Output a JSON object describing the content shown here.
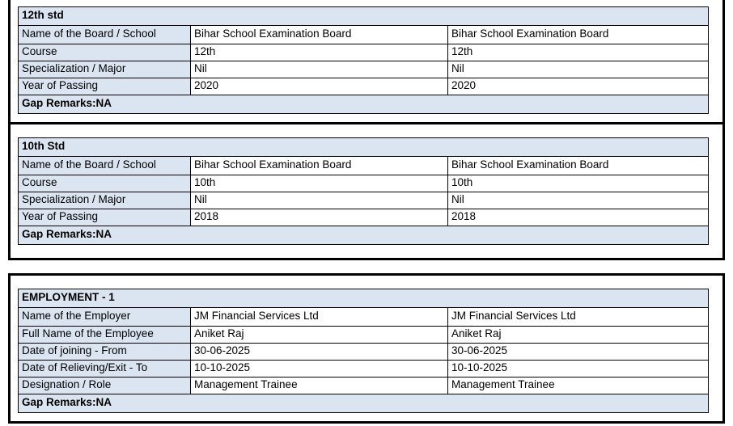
{
  "colors": {
    "section_fill": "#dbe5f1",
    "border": "#000000",
    "background": "#ffffff",
    "text": "#000000"
  },
  "sections": [
    {
      "title": "12th std",
      "rows": [
        {
          "label": "Name of the Board / School",
          "value1": "Bihar School Examination Board",
          "value2": "Bihar School Examination Board"
        },
        {
          "label": "Course",
          "value1": "12th",
          "value2": "12th"
        },
        {
          "label": "Specialization / Major",
          "value1": "Nil",
          "value2": "Nil"
        },
        {
          "label": "Year of Passing",
          "value1": "2020",
          "value2": "2020"
        }
      ],
      "gap_remarks": "Gap Remarks:NA"
    },
    {
      "title": "10th Std",
      "rows": [
        {
          "label": "Name of the Board / School",
          "value1": "Bihar School Examination Board",
          "value2": "Bihar School Examination Board"
        },
        {
          "label": "Course",
          "value1": "10th",
          "value2": "10th"
        },
        {
          "label": "Specialization / Major",
          "value1": "Nil",
          "value2": "Nil"
        },
        {
          "label": "Year of Passing",
          "value1": "2018",
          "value2": "2018"
        }
      ],
      "gap_remarks": "Gap Remarks:NA"
    },
    {
      "title": "EMPLOYMENT - 1",
      "rows": [
        {
          "label": "Name of the Employer",
          "value1": "JM Financial Services Ltd",
          "value2": "JM Financial Services Ltd"
        },
        {
          "label": "Full Name of the Employee",
          "value1": "Aniket Raj",
          "value2": "Aniket Raj"
        },
        {
          "label": "Date of joining - From",
          "value1": "30-06-2025",
          "value2": "30-06-2025"
        },
        {
          "label": "Date of Relieving/Exit - To",
          "value1": "10-10-2025",
          "value2": "10-10-2025"
        },
        {
          "label": "Designation / Role",
          "value1": "Management Trainee",
          "value2": "Management Trainee"
        }
      ],
      "gap_remarks": "Gap Remarks:NA"
    }
  ]
}
